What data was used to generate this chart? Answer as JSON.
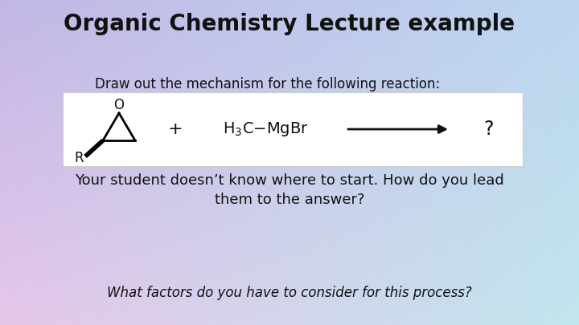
{
  "title": "Organic Chemistry Lecture example",
  "subtitle": "Draw out the mechanism for the following reaction:",
  "body_text": "Your student doesn’t know where to start. How do you lead\nthem to the answer?",
  "footer_text": "What factors do you have to consider for this process?",
  "title_fontsize": 20,
  "subtitle_fontsize": 12,
  "body_fontsize": 13,
  "footer_fontsize": 12,
  "text_color": "#111111",
  "box_edgecolor": "#cccccc",
  "grignard_text": "H$_3$C−MgBr",
  "product_text": "?",
  "plus_text": "+",
  "arrow_color": "#111111",
  "bg_tl": [
    0.76,
    0.72,
    0.9
  ],
  "bg_tr": [
    0.74,
    0.84,
    0.94
  ],
  "bg_bl": [
    0.9,
    0.78,
    0.92
  ],
  "bg_br": [
    0.76,
    0.9,
    0.93
  ]
}
